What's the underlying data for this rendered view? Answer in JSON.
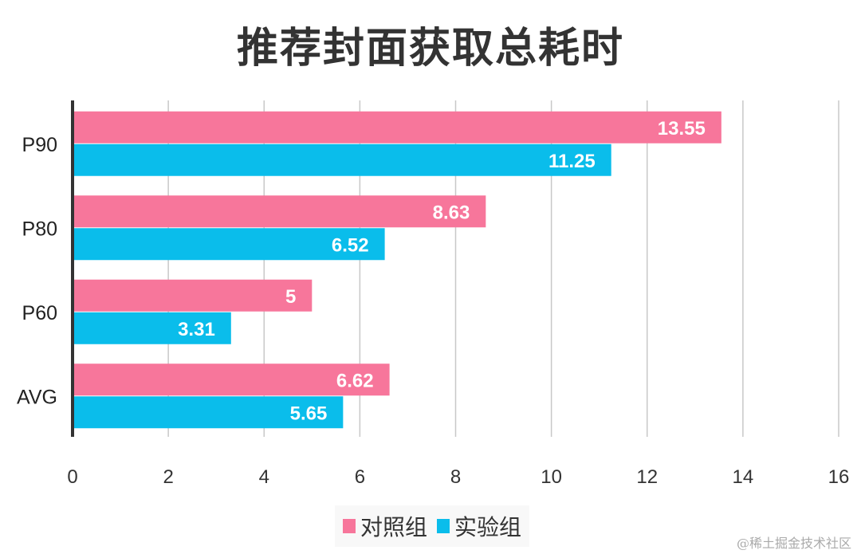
{
  "chart_data": {
    "type": "bar",
    "orientation": "horizontal",
    "title": "推荐封面获取总耗时",
    "categories": [
      "P90",
      "P80",
      "P60",
      "AVG"
    ],
    "series": [
      {
        "name": "对照组",
        "color": "#F7769B",
        "values": [
          13.55,
          8.63,
          5,
          6.62
        ]
      },
      {
        "name": "实验组",
        "color": "#0ABDEB",
        "values": [
          11.25,
          6.52,
          3.31,
          5.65
        ]
      }
    ],
    "xlim": [
      0,
      16
    ],
    "xticks": [
      "0",
      "2",
      "4",
      "6",
      "8",
      "10",
      "12",
      "14",
      "16"
    ],
    "grid": true,
    "legend": "bottom",
    "data_labels": true
  },
  "watermark": "@稀土掘金技术社区"
}
